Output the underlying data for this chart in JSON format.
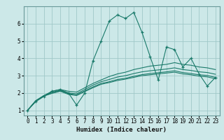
{
  "background_color": "#cce8e8",
  "grid_color": "#a0c8c8",
  "line_color": "#1a7a6a",
  "xlabel": "Humidex (Indice chaleur)",
  "xlim": [
    -0.5,
    23.5
  ],
  "ylim": [
    0.7,
    7.0
  ],
  "xticks": [
    0,
    1,
    2,
    3,
    4,
    5,
    6,
    7,
    8,
    9,
    10,
    11,
    12,
    13,
    14,
    15,
    16,
    17,
    18,
    19,
    20,
    21,
    22,
    23
  ],
  "yticks": [
    1,
    2,
    3,
    4,
    5,
    6
  ],
  "curves": [
    {
      "x": [
        0,
        1,
        2,
        3,
        4,
        5,
        6,
        7,
        8,
        9,
        10,
        11,
        12,
        13,
        14,
        15,
        16,
        17,
        18,
        19,
        20,
        21,
        22,
        23
      ],
      "y": [
        1.0,
        1.5,
        1.8,
        2.1,
        2.2,
        2.0,
        1.3,
        2.0,
        3.85,
        5.0,
        6.15,
        6.5,
        6.3,
        6.65,
        5.5,
        4.1,
        2.75,
        4.65,
        4.5,
        3.5,
        4.0,
        3.1,
        2.4,
        2.9
      ],
      "marker": "+"
    },
    {
      "x": [
        0,
        1,
        2,
        3,
        4,
        5,
        6,
        7,
        8,
        9,
        10,
        11,
        12,
        13,
        14,
        15,
        16,
        17,
        18,
        19,
        20,
        21,
        22,
        23
      ],
      "y": [
        1.0,
        1.55,
        1.85,
        2.1,
        2.2,
        2.1,
        2.05,
        2.3,
        2.55,
        2.75,
        2.95,
        3.1,
        3.2,
        3.35,
        3.45,
        3.55,
        3.6,
        3.65,
        3.75,
        3.65,
        3.6,
        3.5,
        3.45,
        3.35
      ],
      "marker": null
    },
    {
      "x": [
        0,
        1,
        2,
        3,
        4,
        5,
        6,
        7,
        8,
        9,
        10,
        11,
        12,
        13,
        14,
        15,
        16,
        17,
        18,
        19,
        20,
        21,
        22,
        23
      ],
      "y": [
        1.0,
        1.55,
        1.85,
        2.05,
        2.15,
        2.0,
        1.95,
        2.2,
        2.45,
        2.65,
        2.78,
        2.92,
        3.0,
        3.12,
        3.22,
        3.28,
        3.33,
        3.38,
        3.45,
        3.35,
        3.3,
        3.22,
        3.18,
        3.08
      ],
      "marker": null
    },
    {
      "x": [
        0,
        1,
        2,
        3,
        4,
        5,
        6,
        7,
        8,
        9,
        10,
        11,
        12,
        13,
        14,
        15,
        16,
        17,
        18,
        19,
        20,
        21,
        22,
        23
      ],
      "y": [
        1.0,
        1.55,
        1.85,
        2.0,
        2.12,
        1.95,
        1.9,
        2.12,
        2.35,
        2.55,
        2.65,
        2.78,
        2.85,
        2.96,
        3.06,
        3.12,
        3.17,
        3.22,
        3.28,
        3.18,
        3.12,
        3.05,
        3.01,
        2.9
      ],
      "marker": null
    },
    {
      "x": [
        0,
        1,
        2,
        3,
        4,
        5,
        6,
        7,
        8,
        9,
        10,
        11,
        12,
        13,
        14,
        15,
        16,
        17,
        18,
        19,
        20,
        21,
        22,
        23
      ],
      "y": [
        1.0,
        1.55,
        1.82,
        1.98,
        2.1,
        1.92,
        1.85,
        2.08,
        2.3,
        2.5,
        2.6,
        2.72,
        2.8,
        2.9,
        3.0,
        3.05,
        3.1,
        3.15,
        3.2,
        3.1,
        3.05,
        2.97,
        2.93,
        2.82
      ],
      "marker": null
    }
  ],
  "tick_fontsize": 5.5,
  "xlabel_fontsize": 6.5
}
